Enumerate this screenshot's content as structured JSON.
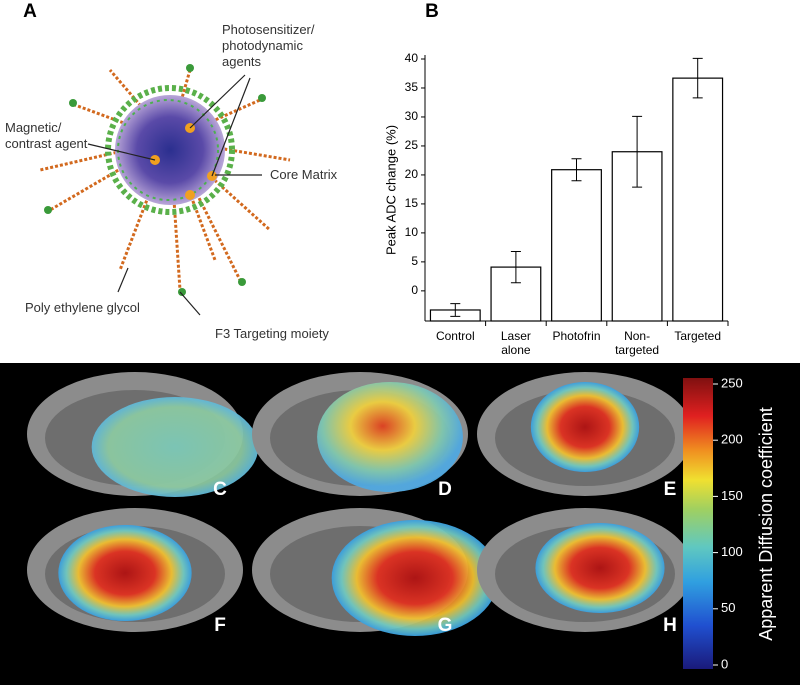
{
  "panel_labels": [
    "A",
    "B",
    "C",
    "D",
    "E",
    "F",
    "G",
    "H"
  ],
  "diagram": {
    "labels": [
      "Photosensitizer/ photodynamic agents",
      "Magnetic/ contrast agent",
      "Core Matrix",
      "Poly ethylene glycol",
      "F3 Targeting moiety"
    ]
  },
  "chart_data": {
    "type": "bar",
    "ylabel": "Peak ADC change (%)",
    "categories": [
      "Control",
      "Laser alone",
      "Photofrin",
      "Non-targeted",
      "Targeted"
    ],
    "values": [
      -3.3,
      4.1,
      20.9,
      24,
      36.7
    ],
    "errors": [
      1.1,
      2.7,
      1.9,
      6.1,
      3.4
    ],
    "color": "#ffffff",
    "ylim": [
      -5.2,
      40
    ],
    "yticks": [
      0,
      5,
      10,
      15,
      20,
      25,
      30,
      35,
      40
    ]
  },
  "colorbar": {
    "label": "Apparent Diffusion coefficient",
    "lim": [
      0,
      250
    ],
    "ticks": [
      0,
      50,
      100,
      150,
      200,
      250
    ]
  }
}
